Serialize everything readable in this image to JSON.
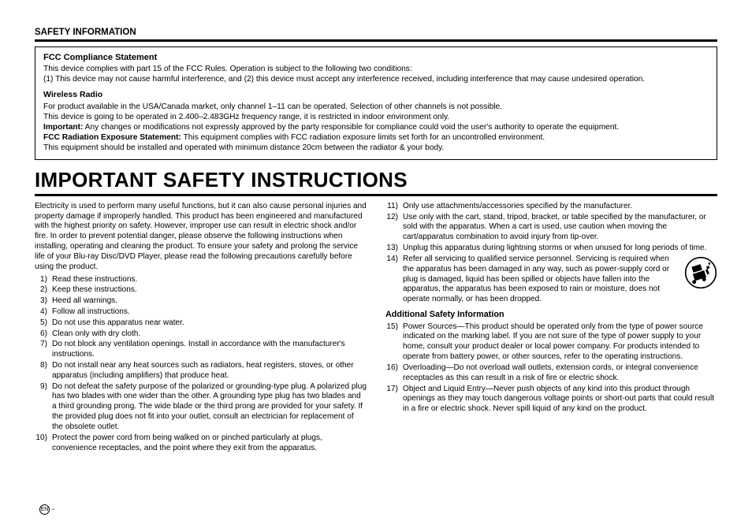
{
  "header": {
    "title": "SAFETY INFORMATION"
  },
  "fcc": {
    "title": "FCC Compliance Statement",
    "p1": "This device complies with part 15 of the FCC Rules. Operation is subject to the following two conditions:",
    "p2": "(1) This device may not cause harmful interference, and (2) this device must accept any interference received, including interference that may cause undesired operation.",
    "wireless_title": "Wireless Radio",
    "w1": "For product available in the USA/Canada market, only channel 1–11 can be operated. Selection of other channels is not possible.",
    "w2": "This device is going to be operated in 2.400–2.483GHz frequency range, it is restricted in indoor environment only.",
    "w3a": "Important:",
    "w3b": " Any changes or modifications not expressly approved by the party responsible for compliance could void the user's authority to operate the equipment.",
    "w4a": "FCC Radiation Exposure Statement:",
    "w4b": " This equipment complies with FCC radiation exposure limits set forth for an uncontrolled environment.",
    "w5": "This equipment should be installed and operated with minimum distance 20cm between the radiator & your body."
  },
  "main": {
    "title": "IMPORTANT SAFETY INSTRUCTIONS",
    "intro": "Electricity is used to perform many useful functions, but it can also cause personal injuries and property damage if improperly handled. This product has been engineered and manufactured with the highest priority on safety. However, improper use can result in electric shock and/or fire. In order to prevent potential danger, please observe the following instructions when installing, operating and cleaning the product. To ensure your safety and prolong the service life of your Blu-ray Disc/DVD Player, please read the following precautions carefully before using the product.",
    "items": [
      "Read these instructions.",
      "Keep these instructions.",
      "Heed all warnings.",
      "Follow all instructions.",
      "Do not use this apparatus near water.",
      "Clean only with dry cloth.",
      "Do not block any ventilation openings. Install in accordance with the manufacturer's instructions.",
      "Do not install near any heat sources such as radiators, heat registers, stoves, or other apparatus (including amplifiers) that produce heat.",
      "Do not defeat the safety purpose of the polarized or grounding-type plug. A polarized plug has two blades with one wider than the other. A grounding type plug has two blades and a third grounding prong. The wide blade or the third prong are provided for your safety. If the provided plug does not fit into your outlet, consult an electrician for replacement of the obsolete outlet.",
      "Protect the power cord from being walked on or pinched particularly at plugs, convenience receptacles, and the point where they exit from the apparatus."
    ],
    "items2": [
      "Only use attachments/accessories specified by the manufacturer.",
      "Use only with the cart, stand, tripod, bracket, or table specified by the manufacturer, or sold with the apparatus. When a cart is used, use caution when moving the cart/apparatus combination to avoid injury from tip-over.",
      "Unplug this apparatus during lightning storms or when unused for long periods of time.",
      "Refer all servicing to qualified service personnel. Servicing is required when the apparatus has been damaged in any way, such as power-supply cord or plug is damaged, liquid has been spilled or objects have fallen into the apparatus, the apparatus has been exposed to rain or moisture, does not operate normally, or has been dropped."
    ],
    "additional_title": "Additional Safety Information",
    "items3": [
      "Power Sources—This product should be operated only from the type of power source indicated on the marking label. If you are not sure of the type of power supply to your home, consult your product dealer or local power company. For products intended to operate from battery power, or other sources, refer to the operating instructions.",
      "Overloading—Do not overload wall outlets, extension cords, or integral convenience receptacles as this can result in a risk of fire or electric shock.",
      "Object and Liquid Entry—Never push objects of any kind into this product through openings as they may touch dangerous voltage points or short-out parts that could result in a fire or electric shock. Never spill liquid of any kind on the product."
    ]
  },
  "footer": {
    "lang": "EN",
    "dash": " -"
  }
}
